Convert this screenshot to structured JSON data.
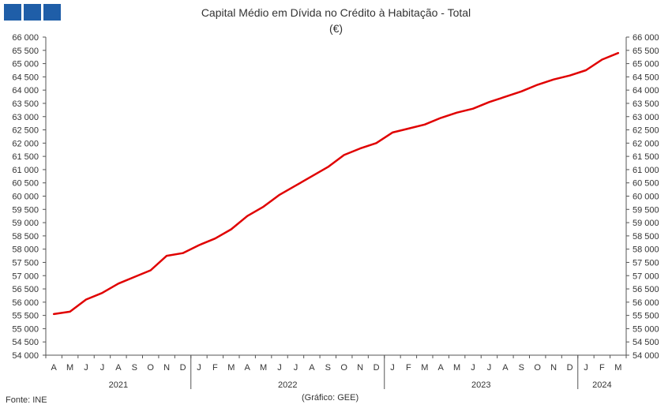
{
  "header": {
    "logo_icon": "ine-logo-icon",
    "logo_color": "#1f5ea8"
  },
  "chart_data": {
    "type": "line",
    "title": "Capital Médio em Dívida no Crédito à Habitação - Total",
    "subtitle": "(€)",
    "ylim": [
      54000,
      66000
    ],
    "ytick_step": 500,
    "y_tick_labels": [
      "54 000",
      "54 500",
      "55 000",
      "55 500",
      "56 000",
      "56 500",
      "57 000",
      "57 500",
      "58 000",
      "58 500",
      "59 000",
      "59 500",
      "60 000",
      "60 500",
      "61 000",
      "61 500",
      "62 000",
      "62 500",
      "63 000",
      "63 500",
      "64 000",
      "64 500",
      "65 000",
      "65 500",
      "66 000"
    ],
    "month_labels": [
      "A",
      "M",
      "J",
      "J",
      "A",
      "S",
      "O",
      "N",
      "D",
      "J",
      "F",
      "M",
      "A",
      "M",
      "J",
      "J",
      "A",
      "S",
      "O",
      "N",
      "D",
      "J",
      "F",
      "M",
      "A",
      "M",
      "J",
      "J",
      "A",
      "S",
      "O",
      "N",
      "D",
      "J",
      "F",
      "M"
    ],
    "year_groups": [
      {
        "label": "2021",
        "months": 9
      },
      {
        "label": "2022",
        "months": 12
      },
      {
        "label": "2023",
        "months": 12
      },
      {
        "label": "2024",
        "months": 3
      }
    ],
    "series": [
      {
        "color": "#e00000",
        "values": [
          55550,
          55640,
          56100,
          56350,
          56700,
          56950,
          57200,
          57750,
          57850,
          58150,
          58400,
          58750,
          59250,
          59600,
          60050,
          60400,
          60750,
          61100,
          61550,
          61800,
          62000,
          62400,
          62550,
          62700,
          62950,
          63150,
          63300,
          63550,
          63750,
          63950,
          64200,
          64400,
          64550,
          64750,
          65150,
          65400
        ]
      }
    ],
    "grid": false,
    "legend": "none"
  },
  "footer": {
    "source": "Fonte: INE",
    "credit": "(Gráfico: GEE)"
  }
}
